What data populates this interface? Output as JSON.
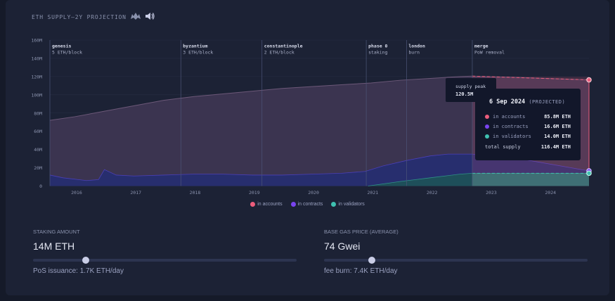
{
  "title": "ETH SUPPLY—2Y PROJECTION",
  "colors": {
    "accounts": "#ec5d7c",
    "contracts": "#7a44f0",
    "validators": "#3fc0b0",
    "total": "#5a4560"
  },
  "chart_data": {
    "type": "area",
    "ylim": [
      0,
      160
    ],
    "y_unit": "M",
    "y_ticks": [
      "0",
      "20M",
      "40M",
      "60M",
      "80M",
      "100M",
      "120M",
      "140M",
      "160M"
    ],
    "x_ticks": [
      "2016",
      "2017",
      "2018",
      "2019",
      "2020",
      "2021",
      "2022",
      "2023",
      "2024"
    ],
    "x_tick_years": [
      2016,
      2017,
      2018,
      2019,
      2020,
      2021,
      2022,
      2023,
      2024
    ],
    "x_range": [
      2015.58,
      2024.68
    ],
    "projection_start": 2022.71,
    "series": [
      {
        "name": "in accounts",
        "values_note": "total supply envelope",
        "x": [
          2015.58,
          2016.0,
          2016.5,
          2017.0,
          2017.5,
          2018.0,
          2018.5,
          2019.0,
          2019.5,
          2020.0,
          2020.5,
          2021.0,
          2021.5,
          2022.0,
          2022.5,
          2022.71,
          2023.5,
          2024.68
        ],
        "y": [
          72,
          76,
          82,
          88,
          94,
          98,
          101,
          104,
          107,
          109,
          111,
          113,
          116,
          118,
          120,
          120.5,
          119,
          116.4
        ]
      },
      {
        "name": "in contracts",
        "x": [
          2015.58,
          2015.8,
          2016.2,
          2016.4,
          2016.5,
          2016.7,
          2017.0,
          2017.5,
          2018.0,
          2018.5,
          2019.0,
          2019.5,
          2020.0,
          2020.5,
          2020.9,
          2021.2,
          2021.6,
          2022.0,
          2022.3,
          2022.71,
          2023.5,
          2024.68
        ],
        "y": [
          12,
          9,
          6,
          7,
          18,
          12,
          11,
          12,
          13,
          13,
          12,
          12,
          13,
          14,
          16,
          22,
          28,
          33,
          35,
          35,
          30,
          16.6
        ]
      },
      {
        "name": "in validators",
        "x": [
          2020.95,
          2021.5,
          2022.0,
          2022.5,
          2022.71,
          2024.68
        ],
        "y": [
          0,
          5,
          9,
          13,
          14,
          14
        ]
      }
    ],
    "events": [
      {
        "name": "genesis",
        "desc": "5 ETH/block",
        "x": 2015.58
      },
      {
        "name": "byzantium",
        "desc": "3 ETH/block",
        "x": 2017.79
      },
      {
        "name": "constantinople",
        "desc": "2 ETH/block",
        "x": 2019.16
      },
      {
        "name": "phase 0",
        "desc": "staking",
        "x": 2020.92
      },
      {
        "name": "london",
        "desc": "burn",
        "x": 2021.6
      },
      {
        "name": "merge",
        "desc": "PoW removal",
        "x": 2022.71
      }
    ]
  },
  "legend": [
    "in accounts",
    "in contracts",
    "in validators"
  ],
  "peak_tooltip": {
    "label": "supply peak",
    "value": "120.5M"
  },
  "hover_tooltip": {
    "date": "6 Sep 2024",
    "tag": "(PROJECTED)",
    "rows": [
      {
        "label": "in accounts",
        "value": "85.8M ETH"
      },
      {
        "label": "in contracts",
        "value": "16.6M ETH"
      },
      {
        "label": "in validators",
        "value": "14.0M ETH"
      }
    ],
    "total_label": "total supply",
    "total_value": "116.4M ETH"
  },
  "controls": {
    "staking": {
      "label": "STAKING AMOUNT",
      "value": "14M ETH",
      "sub": "PoS issuance: 1.7K ETH/day",
      "fraction": 0.2
    },
    "gas": {
      "label": "BASE GAS PRICE (AVERAGE)",
      "value": "74 Gwei",
      "sub": "fee burn: 7.4K ETH/day",
      "fraction": 0.18
    }
  }
}
